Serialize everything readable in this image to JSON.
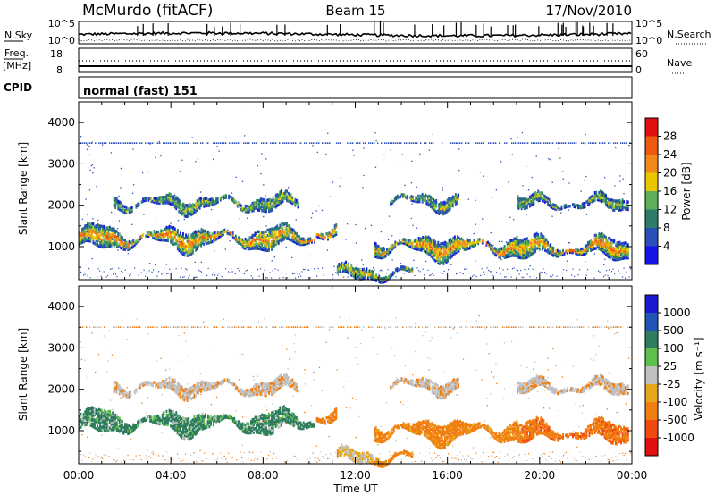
{
  "header": {
    "station": "McMurdo (fitACF)",
    "beam": "Beam 15",
    "date": "17/Nov/2010"
  },
  "noise_panel": {
    "left_label": "N.Sky",
    "left_ticks": [
      "10^5",
      "10^0"
    ],
    "right_ticks": [
      "10^5",
      "10^0"
    ],
    "right_label": "N.Search"
  },
  "freq_panel": {
    "left_label_1": "Freq.",
    "left_label_2": "[MHz]",
    "left_ticks": [
      "18",
      "8"
    ],
    "right_ticks": [
      "60",
      "0"
    ],
    "right_label": "Nave"
  },
  "cpid": {
    "label": "CPID",
    "value": "normal (fast) 151"
  },
  "colors": {
    "power_scale": [
      "#1515e6",
      "#2a4fb8",
      "#2e7d6a",
      "#5fae5a",
      "#e8c700",
      "#f08a1a",
      "#f05a10",
      "#e01010"
    ],
    "velocity_scale": [
      "#1a1ad0",
      "#2255b5",
      "#2f7d5f",
      "#5cc04a",
      "#c0c0c0",
      "#e6a818",
      "#f07e10",
      "#f04a10",
      "#e01010"
    ]
  },
  "chart_data": [
    {
      "type": "heatmap",
      "title": "",
      "xlabel": "",
      "ylabel": "Slant Range [km]",
      "x_range": [
        "00:00",
        "00:00"
      ],
      "ylim": [
        200,
        4500
      ],
      "y_ticks": [
        "1000",
        "2000",
        "3000",
        "4000"
      ],
      "x_ticks": [
        "00:00",
        "04:00",
        "08:00",
        "12:00",
        "16:00",
        "20:00",
        "00:00"
      ],
      "colorbar": {
        "label": "Power [dB]",
        "ticks": [
          "4",
          "8",
          "12",
          "16",
          "20",
          "24",
          "28"
        ],
        "range": [
          0,
          30
        ]
      }
    },
    {
      "type": "heatmap",
      "title": "",
      "xlabel": "Time UT",
      "ylabel": "Slant Range [km]",
      "x_range": [
        "00:00",
        "00:00"
      ],
      "ylim": [
        200,
        4500
      ],
      "y_ticks": [
        "1000",
        "2000",
        "3000",
        "4000"
      ],
      "x_ticks": [
        "00:00",
        "04:00",
        "08:00",
        "12:00",
        "16:00",
        "20:00",
        "00:00"
      ],
      "colorbar": {
        "label": "Velocity [m s⁻¹]",
        "ticks": [
          "1000",
          "500",
          "100",
          "25",
          "-25",
          "-100",
          "-500",
          "-1000"
        ]
      }
    }
  ]
}
